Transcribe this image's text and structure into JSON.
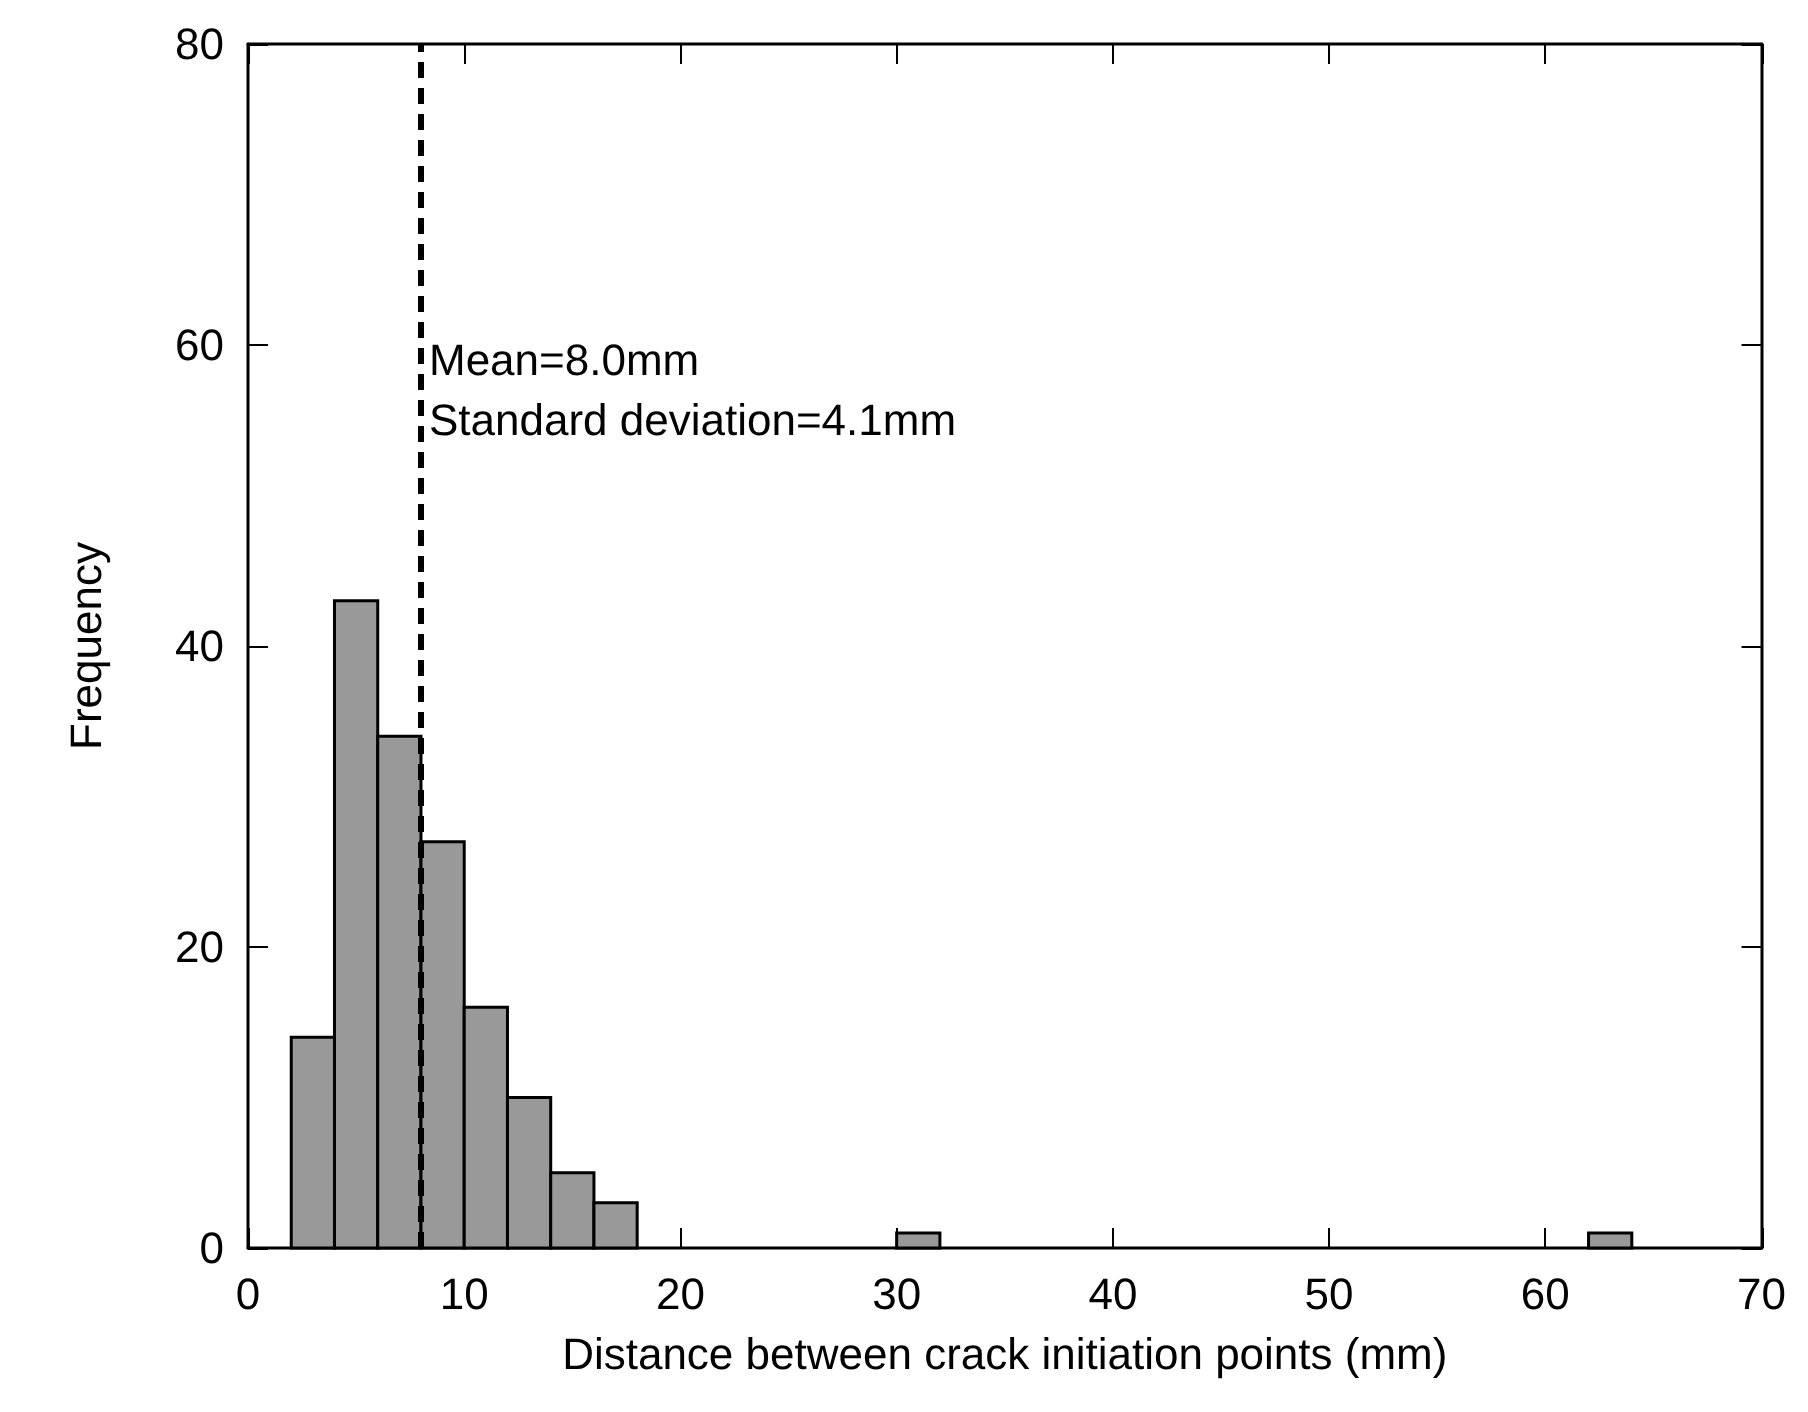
{
  "chart_data": {
    "type": "histogram",
    "xlabel": "Distance between crack initiation points (mm)",
    "ylabel": "Frequency",
    "bins": [
      2,
      4,
      6,
      8,
      10,
      12,
      14,
      16,
      18,
      20,
      22,
      24,
      26,
      28,
      30,
      32,
      34,
      36,
      38,
      40,
      42,
      44,
      46,
      48,
      50,
      52,
      54,
      56,
      58,
      60,
      62,
      64
    ],
    "values": [
      14,
      43,
      34,
      27,
      16,
      10,
      5,
      3,
      0,
      0,
      0,
      0,
      0,
      0,
      1,
      0,
      0,
      0,
      0,
      0,
      0,
      0,
      0,
      0,
      0,
      0,
      0,
      0,
      0,
      0,
      1
    ],
    "color": "#999999",
    "xlim": [
      0,
      70
    ],
    "xticks": [
      0,
      10,
      20,
      30,
      40,
      50,
      60,
      70
    ],
    "ylim": [
      0,
      80
    ],
    "yticks": [
      0,
      20,
      40,
      60,
      80
    ],
    "grid": false,
    "ref_lines": [
      {
        "axis": "x",
        "value": 8,
        "color": "#000000",
        "line_style": "dashed"
      }
    ],
    "annotations": [
      {
        "text": "Mean=8.0mm",
        "x": 8,
        "y": 59
      },
      {
        "text": "Standard deviation=4.1mm",
        "x": 8,
        "y": 55
      }
    ]
  }
}
